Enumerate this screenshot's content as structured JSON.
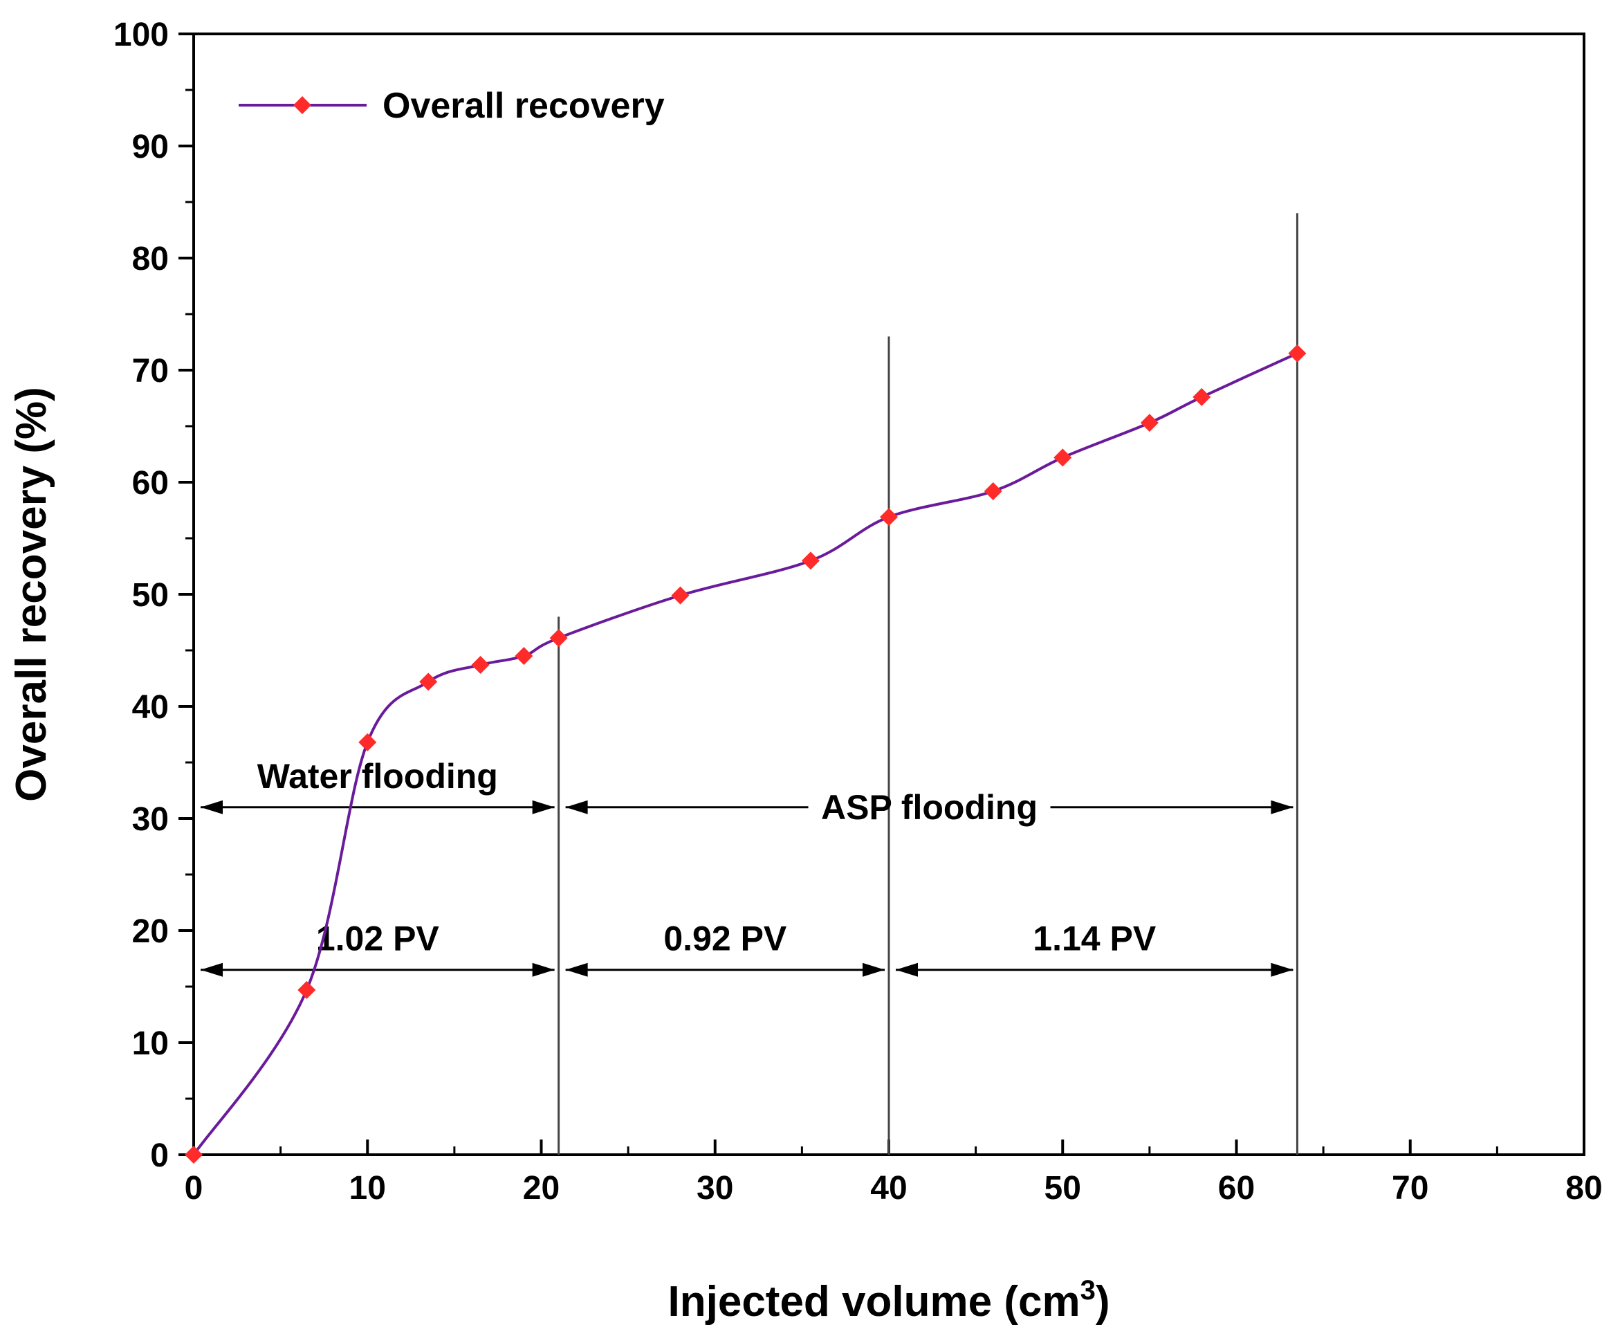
{
  "chart_data": {
    "type": "line",
    "xlabel": "Injected volume (cm",
    "xlabel_sup": "3",
    "xlabel_close": ")",
    "ylabel": "Overall recovery (%)",
    "xlim": [
      0,
      80
    ],
    "ylim": [
      0,
      100
    ],
    "xticks": [
      0,
      10,
      20,
      30,
      40,
      50,
      60,
      70,
      80
    ],
    "yticks": [
      0,
      10,
      20,
      30,
      40,
      50,
      60,
      70,
      80,
      90,
      100
    ],
    "grid": false,
    "legend": {
      "position": "top-left",
      "label": "Overall recovery"
    },
    "series": [
      {
        "name": "Overall recovery",
        "color": "#6a1b9a",
        "marker_color": "#ff2a2a",
        "x": [
          0,
          6.5,
          10,
          13.5,
          16.5,
          19,
          21,
          28,
          35.5,
          40,
          46,
          50,
          55,
          58,
          63.5
        ],
        "y": [
          0,
          14.7,
          36.8,
          42.2,
          43.7,
          44.5,
          46.1,
          49.9,
          53.0,
          56.9,
          59.2,
          62.2,
          65.3,
          67.6,
          71.5
        ]
      }
    ],
    "vertical_lines": [
      {
        "x": 21,
        "y_top": 48
      },
      {
        "x": 40,
        "y_top": 73
      },
      {
        "x": 63.5,
        "y_top": 84
      }
    ],
    "annotations": [
      {
        "text": "Water flooding",
        "x_start": 0,
        "x_end": 21,
        "y": 31
      },
      {
        "text": "ASP flooding",
        "x_start": 21,
        "x_end": 63.5,
        "y": 31
      },
      {
        "text": "1.02 PV",
        "x_start": 0,
        "x_end": 21,
        "y": 16.5
      },
      {
        "text": "0.92 PV",
        "x_start": 21,
        "x_end": 40,
        "y": 16.5
      },
      {
        "text": "1.14 PV",
        "x_start": 40,
        "x_end": 63.5,
        "y": 16.5
      }
    ]
  }
}
